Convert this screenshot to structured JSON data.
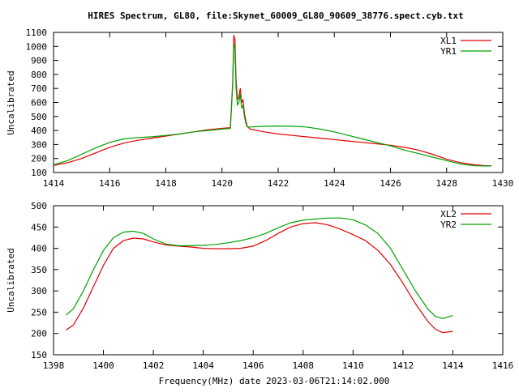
{
  "figure": {
    "title": "HIRES Spectrum, GL80, file:Skynet_60009_GL80_90609_38776.spect.cyb.txt",
    "xlabel": "Frequency(MHz) date 2023-03-06T21:14:02.000"
  },
  "chart_data": [
    {
      "type": "line",
      "ylabel": "Uncalibrated",
      "xlim": [
        1414,
        1430
      ],
      "ylim": [
        100,
        1100
      ],
      "xticks": [
        1414,
        1416,
        1418,
        1420,
        1422,
        1424,
        1426,
        1428,
        1430
      ],
      "yticks": [
        100,
        200,
        300,
        400,
        500,
        600,
        700,
        800,
        900,
        1000,
        1100
      ],
      "legend_position": "top-right",
      "grid": false,
      "series": [
        {
          "name": "XL1",
          "color": "#e00000",
          "x": [
            1414.0,
            1414.5,
            1415.0,
            1415.5,
            1416.0,
            1416.5,
            1417.0,
            1417.5,
            1418.0,
            1418.5,
            1419.0,
            1419.5,
            1420.0,
            1420.3,
            1420.38,
            1420.42,
            1420.46,
            1420.5,
            1420.55,
            1420.6,
            1420.65,
            1420.7,
            1420.75,
            1420.8,
            1420.85,
            1420.9,
            1421.0,
            1421.5,
            1422.0,
            1422.5,
            1423.0,
            1423.5,
            1424.0,
            1424.5,
            1425.0,
            1425.5,
            1426.0,
            1426.5,
            1427.0,
            1427.5,
            1428.0,
            1428.5,
            1429.0,
            1429.3,
            1429.6
          ],
          "y": [
            150,
            170,
            200,
            240,
            280,
            310,
            330,
            345,
            360,
            375,
            390,
            405,
            415,
            420,
            740,
            1080,
            1050,
            760,
            620,
            640,
            700,
            600,
            620,
            520,
            470,
            430,
            410,
            390,
            375,
            365,
            355,
            345,
            335,
            325,
            315,
            305,
            295,
            280,
            260,
            230,
            195,
            170,
            155,
            150,
            148
          ]
        },
        {
          "name": "YR1",
          "color": "#00a000",
          "x": [
            1414.0,
            1414.5,
            1415.0,
            1415.5,
            1416.0,
            1416.5,
            1417.0,
            1417.5,
            1418.0,
            1418.5,
            1419.0,
            1419.5,
            1420.0,
            1420.3,
            1420.38,
            1420.42,
            1420.46,
            1420.5,
            1420.55,
            1420.6,
            1420.65,
            1420.7,
            1420.75,
            1420.8,
            1420.85,
            1420.9,
            1421.0,
            1421.5,
            1422.0,
            1422.5,
            1423.0,
            1423.5,
            1424.0,
            1424.5,
            1425.0,
            1425.5,
            1426.0,
            1426.5,
            1427.0,
            1427.5,
            1428.0,
            1428.5,
            1429.0,
            1429.3,
            1429.6
          ],
          "y": [
            155,
            185,
            230,
            275,
            315,
            340,
            350,
            355,
            365,
            375,
            390,
            400,
            410,
            415,
            720,
            1020,
            990,
            700,
            580,
            600,
            660,
            560,
            580,
            500,
            450,
            425,
            425,
            430,
            432,
            430,
            425,
            410,
            390,
            365,
            340,
            315,
            290,
            260,
            235,
            210,
            185,
            160,
            148,
            147,
            147
          ]
        }
      ]
    },
    {
      "type": "line",
      "ylabel": "Uncalibrated",
      "xlim": [
        1398,
        1416
      ],
      "ylim": [
        150,
        500
      ],
      "xticks": [
        1398,
        1400,
        1402,
        1404,
        1406,
        1408,
        1410,
        1412,
        1414,
        1416
      ],
      "yticks": [
        150,
        200,
        250,
        300,
        350,
        400,
        450,
        500
      ],
      "legend_position": "top-right",
      "grid": false,
      "series": [
        {
          "name": "XL2",
          "color": "#e00000",
          "x": [
            1398.5,
            1398.8,
            1399.2,
            1399.6,
            1400.0,
            1400.4,
            1400.8,
            1401.2,
            1401.6,
            1402.0,
            1402.5,
            1403.0,
            1403.5,
            1404.0,
            1404.5,
            1405.0,
            1405.5,
            1406.0,
            1406.5,
            1407.0,
            1407.5,
            1408.0,
            1408.5,
            1409.0,
            1409.5,
            1410.0,
            1410.5,
            1411.0,
            1411.5,
            1412.0,
            1412.5,
            1413.0,
            1413.3,
            1413.6,
            1414.0
          ],
          "y": [
            208,
            220,
            260,
            310,
            360,
            400,
            418,
            424,
            422,
            415,
            408,
            405,
            403,
            400,
            399,
            399,
            400,
            405,
            418,
            435,
            450,
            458,
            460,
            455,
            445,
            432,
            418,
            395,
            362,
            318,
            270,
            228,
            210,
            202,
            205
          ]
        },
        {
          "name": "YR2",
          "color": "#00a000",
          "x": [
            1398.5,
            1398.8,
            1399.2,
            1399.6,
            1400.0,
            1400.4,
            1400.8,
            1401.2,
            1401.6,
            1402.0,
            1402.5,
            1403.0,
            1403.5,
            1404.0,
            1404.5,
            1405.0,
            1405.5,
            1406.0,
            1406.5,
            1407.0,
            1407.5,
            1408.0,
            1408.5,
            1409.0,
            1409.5,
            1410.0,
            1410.5,
            1411.0,
            1411.5,
            1412.0,
            1412.5,
            1413.0,
            1413.3,
            1413.6,
            1414.0
          ],
          "y": [
            243,
            258,
            300,
            350,
            395,
            425,
            438,
            440,
            435,
            422,
            410,
            406,
            406,
            407,
            409,
            413,
            418,
            425,
            435,
            448,
            460,
            466,
            469,
            471,
            471,
            467,
            455,
            435,
            400,
            350,
            300,
            257,
            240,
            235,
            242
          ]
        }
      ]
    }
  ]
}
